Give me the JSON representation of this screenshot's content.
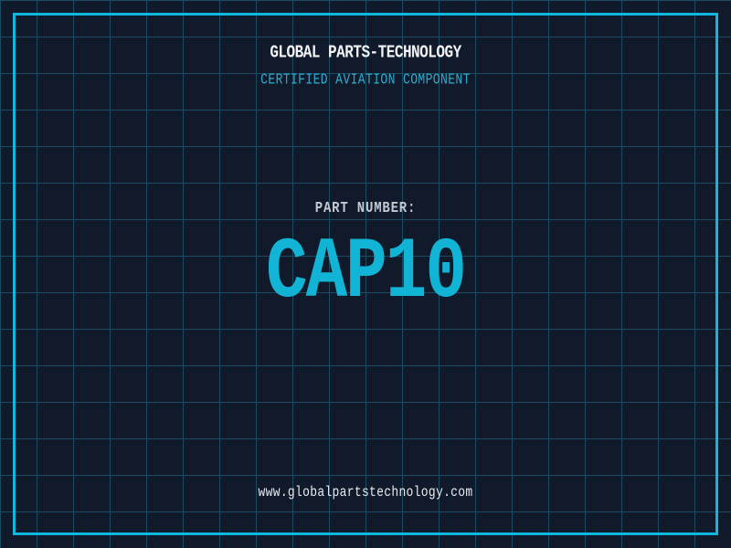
{
  "header": {
    "title": "GLOBAL PARTS-TECHNOLOGY",
    "subtitle": "CERTIFIED AVIATION COMPONENT"
  },
  "part": {
    "label": "PART NUMBER:",
    "number": "CAP10"
  },
  "footer": {
    "url": "www.globalpartstechnology.com"
  },
  "colors": {
    "background": "#101a2b",
    "grid_line": "#1c4a5f",
    "frame": "#0cb8dc",
    "title": "#f2f3f5",
    "subtitle": "#2eaccf",
    "part_label": "#c3c9d3",
    "part_number": "#12b4d6",
    "url": "#e9ebef"
  }
}
